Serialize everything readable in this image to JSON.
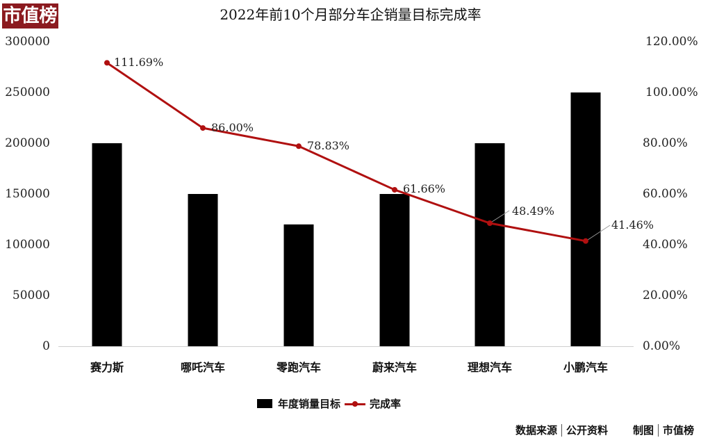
{
  "brand": {
    "logo_text": "市值榜",
    "logo_color": "#8b1a1f"
  },
  "chart_data": {
    "type": "bar+line",
    "title": "2022年前10个月部分车企销量目标完成率",
    "categories": [
      "赛力斯",
      "哪吒汽车",
      "零跑汽车",
      "蔚来汽车",
      "理想汽车",
      "小鹏汽车"
    ],
    "series": [
      {
        "name": "年度销量目标",
        "type": "bar",
        "axis": "left",
        "color": "#000000",
        "values": [
          200000,
          150000,
          120000,
          150000,
          200000,
          250000
        ]
      },
      {
        "name": "完成率",
        "type": "line",
        "axis": "right",
        "color": "#b01010",
        "values": [
          111.69,
          86.0,
          78.83,
          61.66,
          48.49,
          41.46
        ],
        "labels": [
          "111.69%",
          "86.00%",
          "78.83%",
          "61.66%",
          "48.49%",
          "41.46%"
        ]
      }
    ],
    "left_axis": {
      "ylim": [
        0,
        300000
      ],
      "ticks": [
        "300000",
        "250000",
        "200000",
        "150000",
        "100000",
        "50000",
        "0"
      ]
    },
    "right_axis": {
      "ylim": [
        0,
        120
      ],
      "ticks": [
        "120.00%",
        "100.00%",
        "80.00%",
        "60.00%",
        "40.00%",
        "20.00%",
        "0.00%"
      ]
    },
    "xlabel": "",
    "ylabel": "",
    "grid": false,
    "legend_position": "bottom"
  },
  "legend": {
    "bar_label": "年度销量目标",
    "line_label": "完成率"
  },
  "footer": {
    "source_label": "数据来源",
    "source_value": "公开资料",
    "maker_label": "制图",
    "maker_value": "市值榜"
  }
}
